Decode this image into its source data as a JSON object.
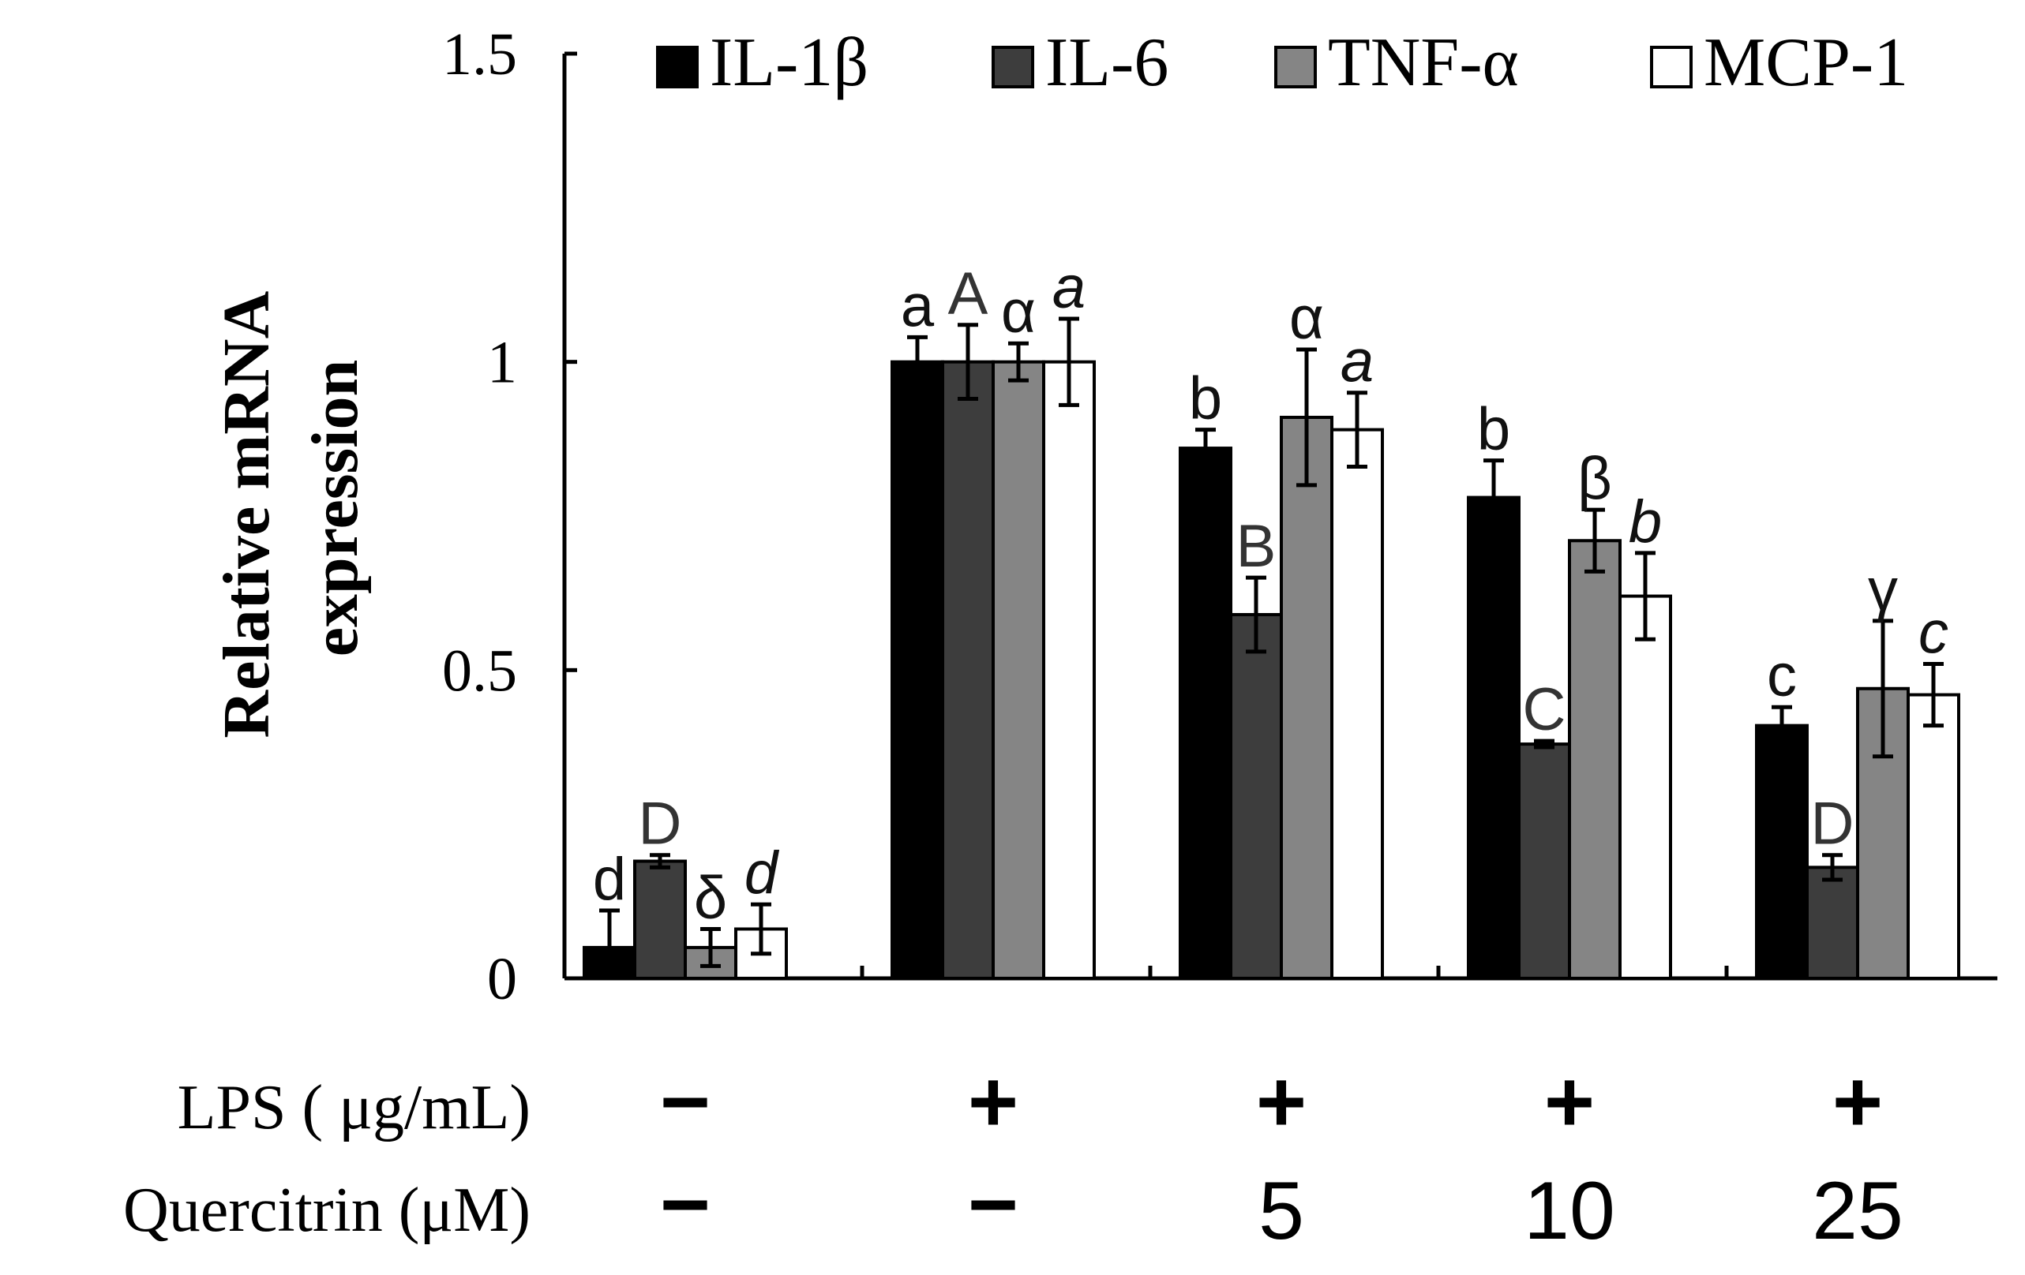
{
  "chart_data": {
    "type": "bar",
    "ylabel_line1": "Relative mRNA",
    "ylabel_line2": "expression",
    "ylim": [
      0,
      1.5
    ],
    "yticks": [
      {
        "value": 0,
        "label": "0"
      },
      {
        "value": 0.5,
        "label": "0.5"
      },
      {
        "value": 1,
        "label": "1"
      },
      {
        "value": 1.5,
        "label": "1.5"
      }
    ],
    "categories": [
      "LPS- Quercitrin-",
      "LPS+",
      "LPS+ Q5",
      "LPS+ Q10",
      "LPS+ Q25"
    ],
    "series": [
      {
        "name": "IL-1β",
        "color": "#000000",
        "values": [
          0.05,
          1.0,
          0.86,
          0.78,
          0.41
        ],
        "errors": [
          0.06,
          0.04,
          0.03,
          0.06,
          0.03
        ],
        "labels": [
          "d",
          "a",
          "b",
          "b",
          "c"
        ],
        "label_style": "normal"
      },
      {
        "name": "IL-6",
        "color": "#3d3d3d",
        "values": [
          0.19,
          1.0,
          0.59,
          0.38,
          0.18
        ],
        "errors": [
          0.01,
          0.06,
          0.06,
          0.005,
          0.02
        ],
        "labels": [
          "D",
          "A",
          "B",
          "C",
          "D"
        ],
        "label_style": "normal"
      },
      {
        "name": "TNF-α",
        "color": "#858585",
        "values": [
          0.05,
          1.0,
          0.91,
          0.71,
          0.47
        ],
        "errors": [
          0.03,
          0.03,
          0.11,
          0.05,
          0.11
        ],
        "labels": [
          "δ",
          "α",
          "α",
          "β",
          "γ"
        ],
        "label_style": "normal"
      },
      {
        "name": "MCP-1",
        "color": "#ffffff",
        "values": [
          0.08,
          1.0,
          0.89,
          0.62,
          0.46
        ],
        "errors": [
          0.04,
          0.07,
          0.06,
          0.07,
          0.05
        ],
        "labels": [
          "d",
          "a",
          "a",
          "b",
          "c"
        ],
        "label_style": "italic"
      }
    ],
    "treatments": [
      {
        "name": "LPS ( μg/mL)",
        "values": [
          "−",
          "+",
          "+",
          "+",
          "+"
        ]
      },
      {
        "name": "Quercitrin (μM)",
        "values": [
          "−",
          "−",
          "5",
          "10",
          "25"
        ]
      }
    ],
    "legend_position": "top"
  }
}
